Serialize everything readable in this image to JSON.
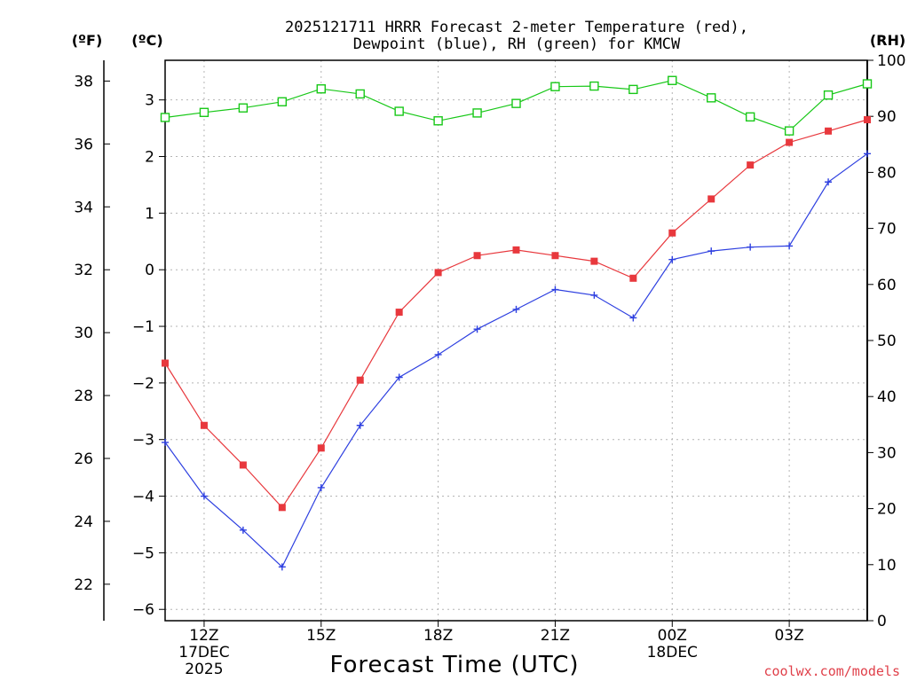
{
  "chart_data": {
    "type": "line",
    "title_line1": "2025121711 HRRR Forecast 2-meter Temperature (red),",
    "title_line2": "Dewpoint (blue), RH (green) for KMCW",
    "xlabel": "Forecast Time (UTC)",
    "credit": "coolwx.com/models",
    "units": {
      "fahrenheit": "(ºF)",
      "celsius": "(ºC)",
      "rh": "(RH)"
    },
    "x_unit": "forecast hour from 11Z 17 Dec 2025",
    "x_range": [
      0,
      18
    ],
    "x_ticks": [
      {
        "hour": 1,
        "label": "12Z",
        "sub1": "17DEC",
        "sub2": "2025"
      },
      {
        "hour": 4,
        "label": "15Z",
        "sub1": "",
        "sub2": ""
      },
      {
        "hour": 7,
        "label": "18Z",
        "sub1": "",
        "sub2": ""
      },
      {
        "hour": 10,
        "label": "21Z",
        "sub1": "",
        "sub2": ""
      },
      {
        "hour": 13,
        "label": "00Z",
        "sub1": "18DEC",
        "sub2": ""
      },
      {
        "hour": 16,
        "label": "03Z",
        "sub1": "",
        "sub2": ""
      }
    ],
    "y_celsius_range": [
      -6.2,
      3.7
    ],
    "y_celsius_ticks": [
      "3",
      "2",
      "1",
      "0",
      "−1",
      "−2",
      "−3",
      "−4",
      "−5",
      "−6"
    ],
    "y_fahrenheit_ticks": [
      "38",
      "36",
      "34",
      "32",
      "30",
      "28",
      "26",
      "24",
      "22"
    ],
    "y_rh_range": [
      0,
      100
    ],
    "y_rh_ticks": [
      "100",
      "90",
      "80",
      "70",
      "60",
      "50",
      "40",
      "30",
      "20",
      "10",
      "0"
    ],
    "colors": {
      "temperature": "#e8383d",
      "dewpoint": "#2d3fe0",
      "rh": "#18c818"
    },
    "series": [
      {
        "name": "Temperature (°C)",
        "color": "#e8383d",
        "marker": "filled-square",
        "x": [
          0,
          1,
          2,
          3,
          4,
          5,
          6,
          7,
          8,
          9,
          10,
          11,
          12,
          13,
          14,
          15,
          16,
          17,
          18
        ],
        "values": [
          -1.65,
          -2.75,
          -3.45,
          -4.2,
          -3.15,
          -1.95,
          -0.75,
          -0.05,
          0.25,
          0.35,
          0.25,
          0.15,
          -0.15,
          0.65,
          1.25,
          1.85,
          2.25,
          2.45,
          2.65
        ]
      },
      {
        "name": "Dewpoint (°C)",
        "color": "#2d3fe0",
        "marker": "plus",
        "x": [
          0,
          1,
          2,
          3,
          4,
          5,
          6,
          7,
          8,
          9,
          10,
          11,
          12,
          13,
          14,
          15,
          16,
          17,
          18
        ],
        "values": [
          -3.05,
          -4.0,
          -4.6,
          -5.25,
          -3.85,
          -2.75,
          -1.9,
          -1.5,
          -1.05,
          -0.7,
          -0.35,
          -0.45,
          -0.85,
          0.18,
          0.33,
          0.4,
          0.42,
          1.55,
          2.05
        ]
      },
      {
        "name": "RH (%)",
        "color": "#18c818",
        "marker": "open-square",
        "x": [
          0,
          1,
          2,
          3,
          4,
          5,
          6,
          7,
          8,
          9,
          10,
          11,
          12,
          13,
          14,
          15,
          16,
          17,
          18
        ],
        "values": [
          89.8,
          90.7,
          91.5,
          92.6,
          94.9,
          94.0,
          90.9,
          89.2,
          90.6,
          92.3,
          95.3,
          95.4,
          94.8,
          96.4,
          93.3,
          89.9,
          87.4,
          93.8,
          95.8
        ]
      }
    ]
  }
}
